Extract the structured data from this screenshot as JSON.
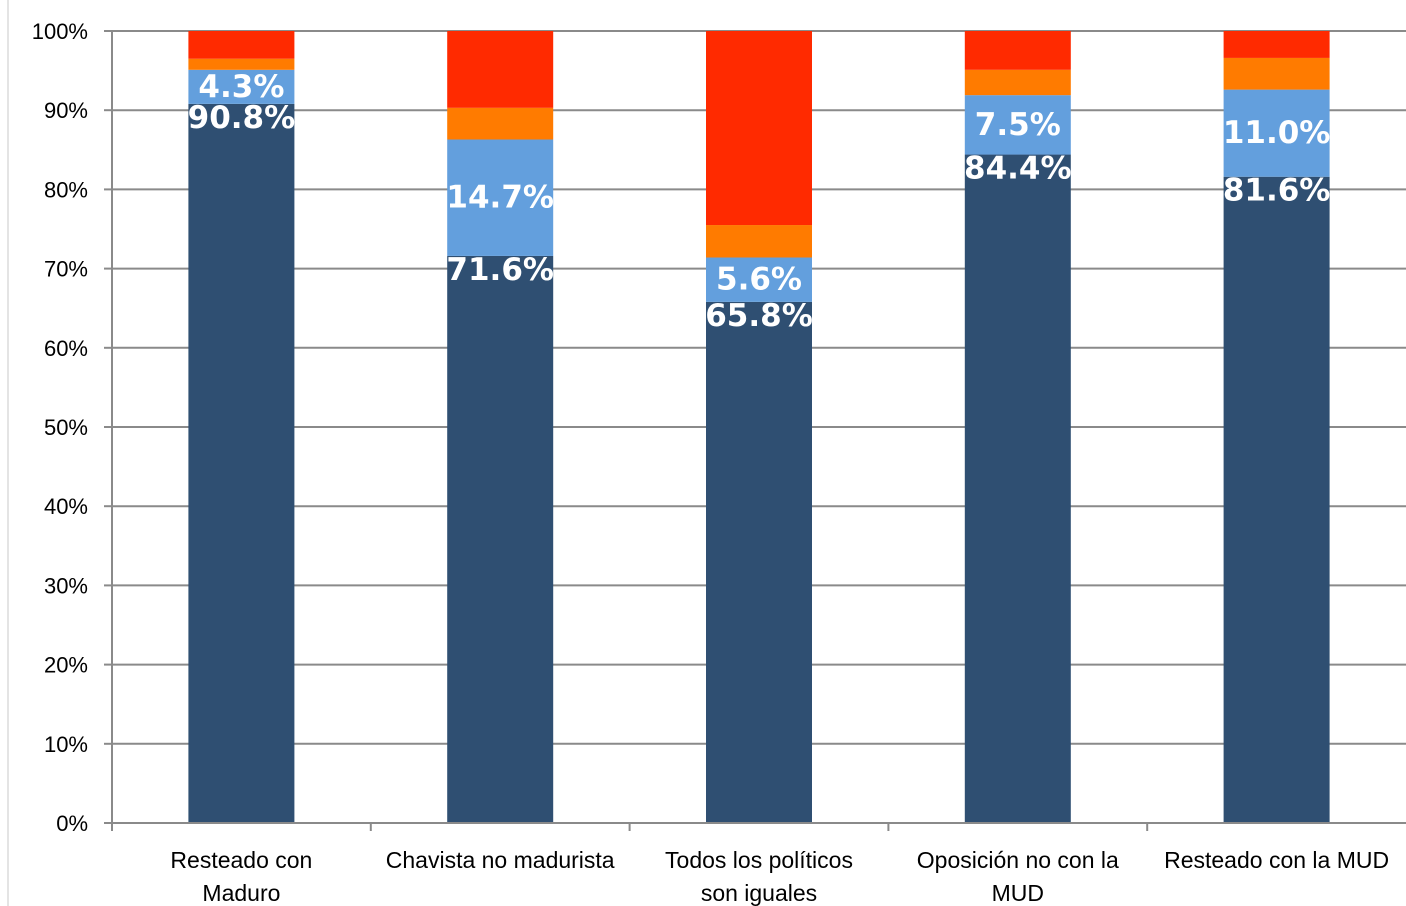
{
  "chart_data": {
    "type": "bar",
    "stacked": true,
    "percent_stacked": true,
    "ylim": [
      0,
      100
    ],
    "y_ticks": [
      "0%",
      "10%",
      "20%",
      "30%",
      "40%",
      "50%",
      "60%",
      "70%",
      "80%",
      "90%",
      "100%"
    ],
    "y_tick_values": [
      0,
      10,
      20,
      30,
      40,
      50,
      60,
      70,
      80,
      90,
      100
    ],
    "grid": true,
    "legend": "none",
    "categories": [
      [
        "Resteado con",
        "Maduro"
      ],
      [
        "Chavista no madurista"
      ],
      [
        "Todos los políticos",
        "son iguales"
      ],
      [
        "Oposición no con la",
        "MUD"
      ],
      [
        "Resteado con la MUD"
      ]
    ],
    "series": [
      {
        "color": "#2f4f72",
        "values": [
          90.8,
          71.6,
          65.8,
          84.4,
          81.6
        ],
        "labels": [
          "90.8%",
          "71.6%",
          "65.8%",
          "84.4%",
          "81.6%"
        ]
      },
      {
        "color": "#639fdd",
        "values": [
          4.3,
          14.7,
          5.6,
          7.5,
          11.0
        ],
        "labels": [
          "4.3%",
          "14.7%",
          "5.6%",
          "7.5%",
          "11.0%"
        ]
      },
      {
        "color": "#ff7b00",
        "values": [
          1.4,
          4.0,
          4.1,
          3.2,
          4.0
        ]
      },
      {
        "color": "#ff2a00",
        "values": [
          3.5,
          9.7,
          24.5,
          4.9,
          3.4
        ]
      }
    ]
  }
}
